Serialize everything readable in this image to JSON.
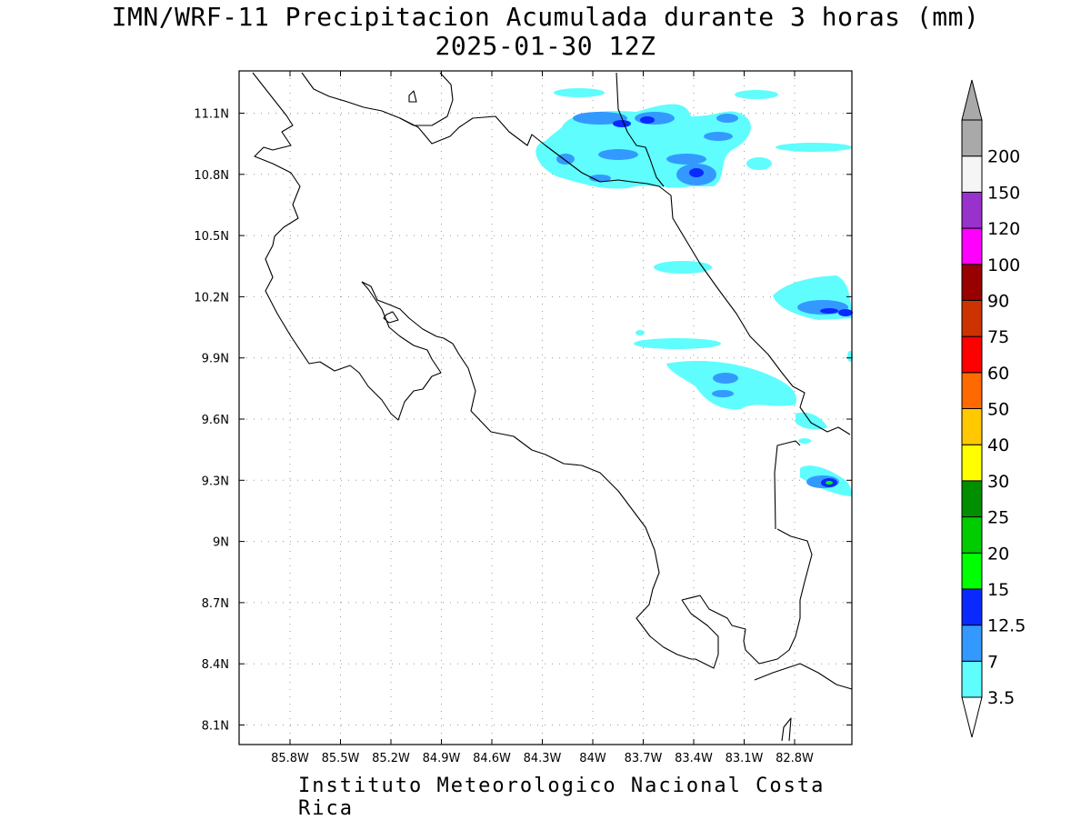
{
  "title": {
    "line1": "IMN/WRF-11 Precipitacion Acumulada durante 3 horas (mm)",
    "line2": "2025-01-30 12Z"
  },
  "footer": "Instituto Meteorologico Nacional Costa Rica",
  "axes": {
    "lat_ticks": [
      "11.1N",
      "10.8N",
      "10.5N",
      "10.2N",
      "9.9N",
      "9.6N",
      "9.3N",
      "9N",
      "8.7N",
      "8.4N",
      "8.1N"
    ],
    "lon_ticks": [
      "85.8W",
      "85.5W",
      "85.2W",
      "84.9W",
      "84.6W",
      "84.3W",
      "84W",
      "83.7W",
      "83.4W",
      "83.1W",
      "82.8W"
    ],
    "lat_values": [
      11.1,
      10.8,
      10.5,
      10.2,
      9.9,
      9.6,
      9.3,
      9.0,
      8.7,
      8.4,
      8.1
    ],
    "lon_values": [
      -85.8,
      -85.5,
      -85.2,
      -84.9,
      -84.6,
      -84.3,
      -84.0,
      -83.7,
      -83.4,
      -83.1,
      -82.8
    ],
    "grid": "dotted"
  },
  "colorbar": {
    "labels": [
      "3.5",
      "7",
      "12.5",
      "15",
      "20",
      "25",
      "30",
      "40",
      "50",
      "60",
      "75",
      "90",
      "100",
      "120",
      "150",
      "200"
    ],
    "colors": [
      "#5ffdfd",
      "#3399ff",
      "#0a29ff",
      "#00ff00",
      "#00cc00",
      "#008f00",
      "#ffff00",
      "#ffc800",
      "#ff6a00",
      "#ff0000",
      "#cc3300",
      "#990000",
      "#ff00ff",
      "#9932cc",
      "#f5f5f5",
      "#a9a9a9"
    ],
    "over_color": "#a9a9a9",
    "under_color": "#ffffff"
  }
}
